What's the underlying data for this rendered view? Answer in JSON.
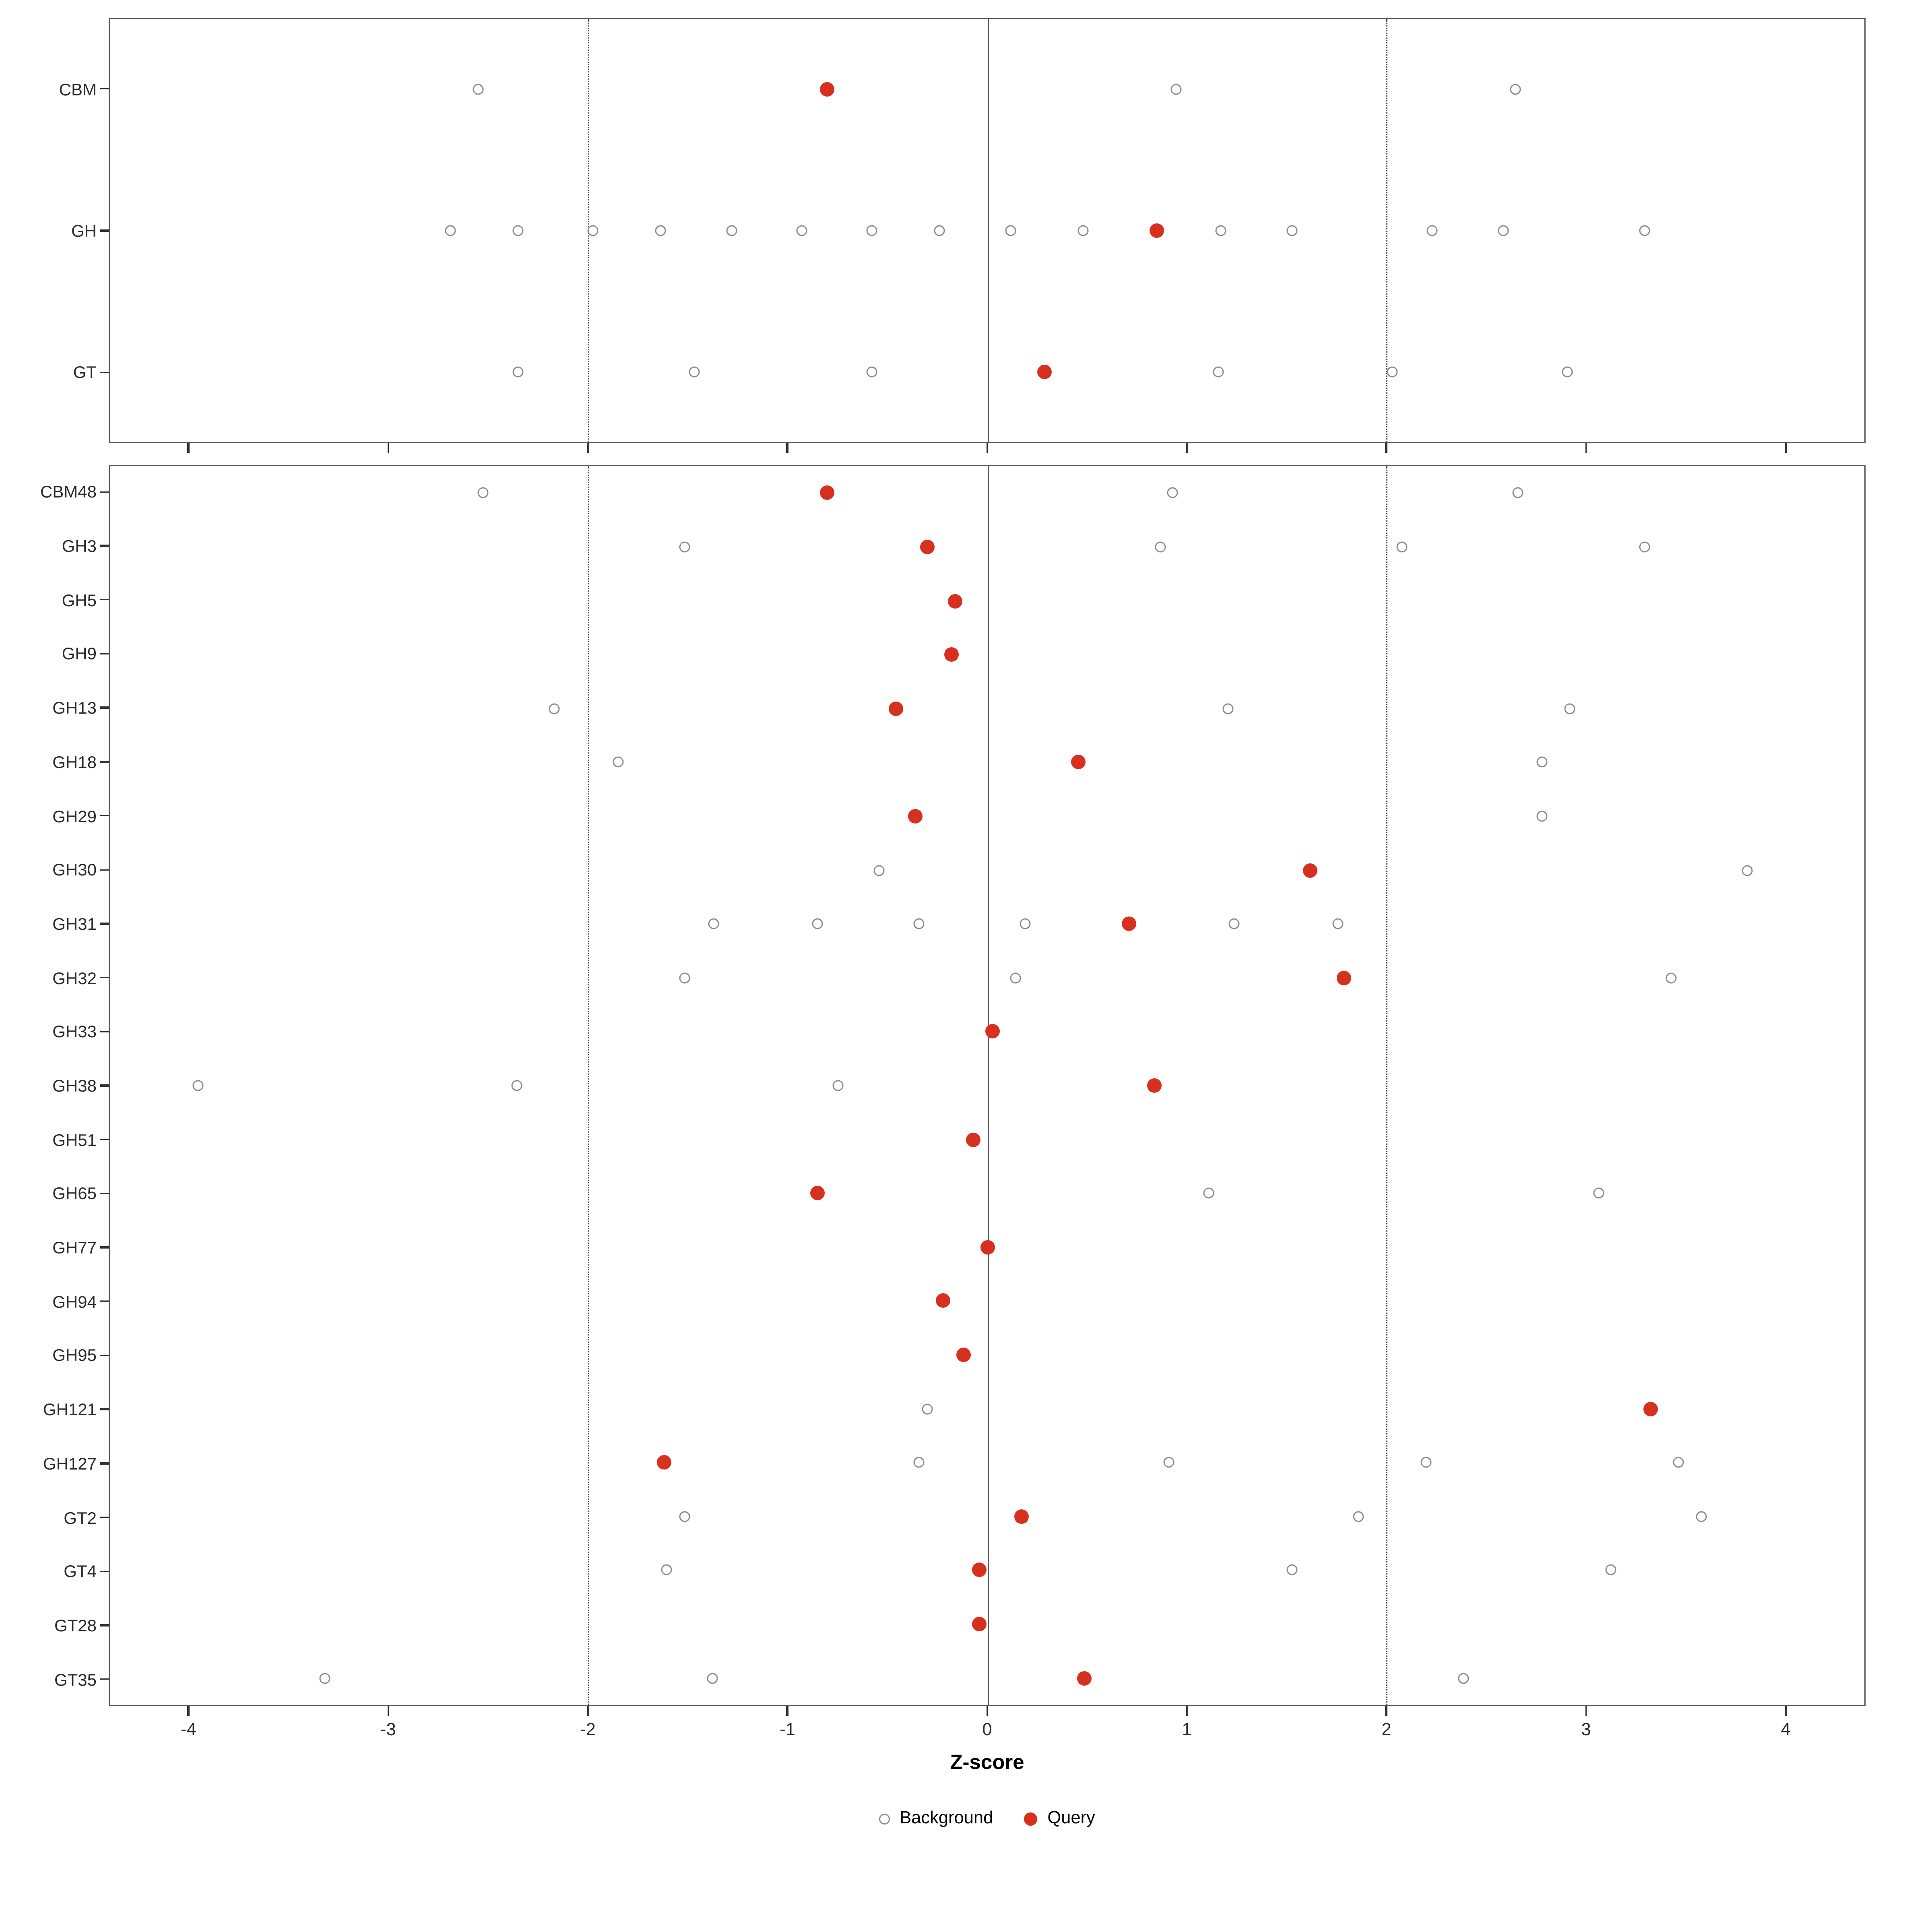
{
  "chart_data": {
    "type": "scatter",
    "title": "",
    "xlabel": "Z-score",
    "ylabel": "",
    "xlim": [
      -4.4,
      4.4
    ],
    "x_ticks": [
      -4,
      -3,
      -2,
      -1,
      0,
      1,
      2,
      3,
      4
    ],
    "grid": false,
    "legend_position": "bottom",
    "reference_lines": {
      "solid": [
        0
      ],
      "dotted": [
        -2,
        2
      ]
    },
    "legend": [
      {
        "label": "Background",
        "type": "open"
      },
      {
        "label": "Query",
        "type": "filled"
      }
    ],
    "colors": {
      "query": "#d7301f",
      "background_stroke": "#8a8a8a",
      "reference_line": "#4d4d4d",
      "panel_border": "#595959"
    },
    "panels": [
      {
        "name": "families",
        "rows": [
          {
            "label": "CBM",
            "background": [
              -2.55,
              0.95,
              2.65
            ],
            "query": -0.8
          },
          {
            "label": "GH",
            "background": [
              -2.69,
              -2.35,
              -1.98,
              -1.64,
              -1.28,
              -0.93,
              -0.58,
              -0.24,
              0.12,
              0.48,
              1.17,
              1.53,
              2.23,
              2.59,
              3.3
            ],
            "query": 0.85
          },
          {
            "label": "GT",
            "background": [
              -2.35,
              -1.47,
              -0.58,
              1.16,
              2.03,
              2.91
            ],
            "query": 0.29
          }
        ]
      },
      {
        "name": "subfamilies",
        "rows": [
          {
            "label": "CBM48",
            "background": [
              -2.53,
              0.93,
              2.66
            ],
            "query": -0.8
          },
          {
            "label": "GH3",
            "background": [
              -1.52,
              0.87,
              2.08,
              3.3
            ],
            "query": -0.3
          },
          {
            "label": "GH5",
            "background": [],
            "query": -0.16
          },
          {
            "label": "GH9",
            "background": [],
            "query": -0.18
          },
          {
            "label": "GH13",
            "background": [
              -2.17,
              1.21,
              2.92
            ],
            "query": -0.46
          },
          {
            "label": "GH18",
            "background": [
              -1.85,
              2.78
            ],
            "query": 0.46
          },
          {
            "label": "GH29",
            "background": [
              2.78
            ],
            "query": -0.36
          },
          {
            "label": "GH30",
            "background": [
              -0.54,
              3.81
            ],
            "query": 1.62
          },
          {
            "label": "GH31",
            "background": [
              -1.37,
              -0.85,
              -0.34,
              0.19,
              1.24,
              1.76
            ],
            "query": 0.71
          },
          {
            "label": "GH32",
            "background": [
              -1.52,
              0.14,
              3.43
            ],
            "query": 1.79
          },
          {
            "label": "GH33",
            "background": [],
            "query": 0.03
          },
          {
            "label": "GH38",
            "background": [
              -3.96,
              -2.36,
              -0.75
            ],
            "query": 0.84
          },
          {
            "label": "GH51",
            "background": [],
            "query": -0.07
          },
          {
            "label": "GH65",
            "background": [
              1.11,
              3.07
            ],
            "query": -0.85
          },
          {
            "label": "GH77",
            "background": [],
            "query": 0.0
          },
          {
            "label": "GH94",
            "background": [],
            "query": -0.22
          },
          {
            "label": "GH95",
            "background": [],
            "query": -0.12
          },
          {
            "label": "GH121",
            "background": [
              -0.3
            ],
            "query": 3.33
          },
          {
            "label": "GH127",
            "background": [
              -0.34,
              0.91,
              2.2,
              3.47
            ],
            "query": -1.62
          },
          {
            "label": "GT2",
            "background": [
              -1.52,
              1.86,
              3.58
            ],
            "query": 0.17
          },
          {
            "label": "GT4",
            "background": [
              -1.61,
              1.53,
              3.13
            ],
            "query": -0.04
          },
          {
            "label": "GT28",
            "background": [],
            "query": -0.04
          },
          {
            "label": "GT35",
            "background": [
              -3.32,
              -1.38,
              2.39
            ],
            "query": 0.49
          }
        ]
      }
    ]
  }
}
